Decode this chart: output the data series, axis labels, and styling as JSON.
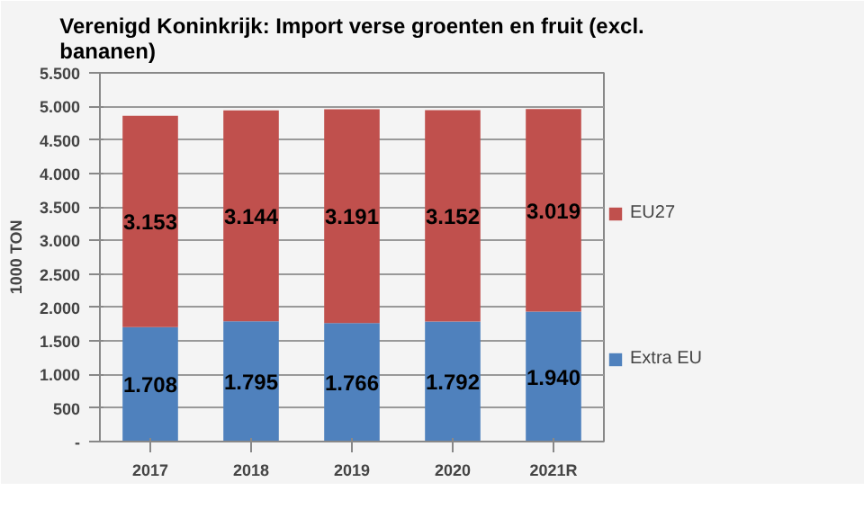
{
  "chart_data": {
    "type": "bar",
    "stacked": true,
    "title": "Verenigd Koninkrijk: Import verse groenten en fruit (excl. bananen)",
    "ylabel": "1000 TON",
    "categories": [
      "2017",
      "2018",
      "2019",
      "2020",
      "2021R"
    ],
    "series": [
      {
        "name": "Extra EU",
        "color": "#4f81bd",
        "values": [
          1708,
          1795,
          1766,
          1792,
          1940
        ],
        "value_labels": [
          "1.708",
          "1.795",
          "1.766",
          "1.792",
          "1.940"
        ]
      },
      {
        "name": "EU27",
        "color": "#c0504d",
        "values": [
          3153,
          3144,
          3191,
          3152,
          3019
        ],
        "value_labels": [
          "3.153",
          "3.144",
          "3.191",
          "3.152",
          "3.019"
        ]
      }
    ],
    "ylim": [
      0,
      5500
    ],
    "yticks": [
      {
        "value": 0,
        "label": "-"
      },
      500,
      {
        "value": 1000,
        "label": "1.000"
      },
      {
        "value": 1500,
        "label": "1.500"
      },
      {
        "value": 2000,
        "label": "2.000"
      },
      {
        "value": 2500,
        "label": "2.500"
      },
      {
        "value": 3000,
        "label": "3.000"
      },
      {
        "value": 3500,
        "label": "3.500"
      },
      {
        "value": 4000,
        "label": "4.000"
      },
      {
        "value": 4500,
        "label": "4.500"
      },
      {
        "value": 5000,
        "label": "5.000"
      },
      {
        "value": 5500,
        "label": "5.500"
      }
    ],
    "grid": "y",
    "legend": "right"
  }
}
